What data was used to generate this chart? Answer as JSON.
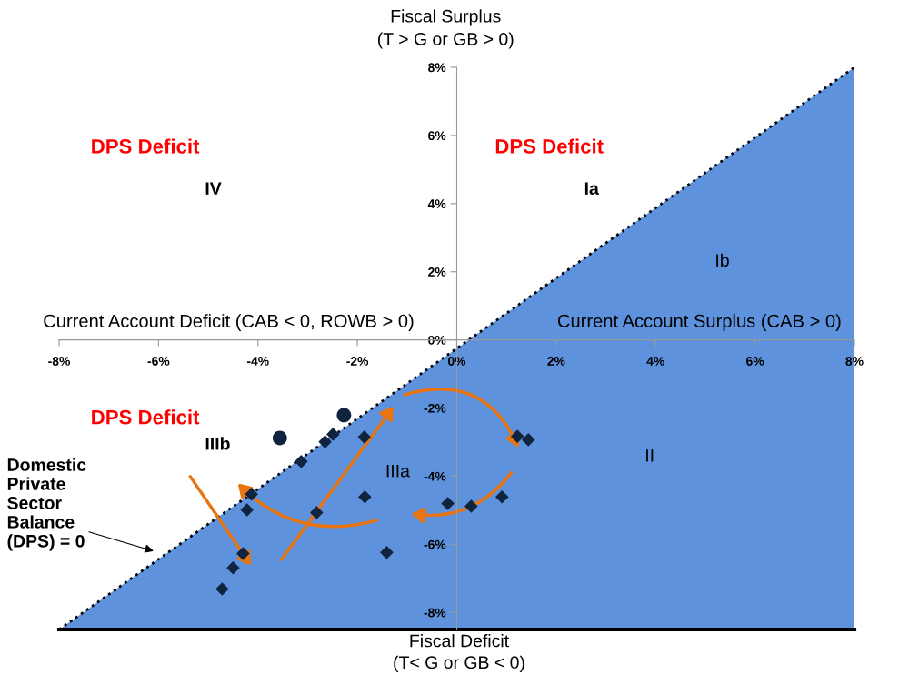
{
  "chart_data": {
    "type": "scatter",
    "ylabel": "Fiscal Surplus\n(T > G or GB > 0)",
    "xlabel": "Fiscal Deficit\n(T< G or GB < 0)",
    "xlim": [
      -8,
      8
    ],
    "ylim": [
      -8.5,
      8
    ],
    "xticks": [
      {
        "value": -8,
        "label": "-8%"
      },
      {
        "value": -6,
        "label": "-6%"
      },
      {
        "value": -4,
        "label": "-4%"
      },
      {
        "value": -2,
        "label": "-2%"
      },
      {
        "value": 0,
        "label": "0%"
      },
      {
        "value": 2,
        "label": "2%"
      },
      {
        "value": 4,
        "label": "4%"
      },
      {
        "value": 6,
        "label": "6%"
      },
      {
        "value": 8,
        "label": "8%"
      }
    ],
    "yticks": [
      {
        "value": -8,
        "label": "-8%"
      },
      {
        "value": -6,
        "label": "-6%"
      },
      {
        "value": -4,
        "label": "-4%"
      },
      {
        "value": -2,
        "label": "-2%"
      },
      {
        "value": 0,
        "label": "0%"
      },
      {
        "value": 2,
        "label": "2%"
      },
      {
        "value": 4,
        "label": "4%"
      },
      {
        "value": 6,
        "label": "6%"
      },
      {
        "value": 8,
        "label": "8%"
      }
    ],
    "grid": false,
    "series": [
      {
        "type": "area",
        "color": "#5e92dc",
        "line_style": "dotted",
        "marker": "none",
        "x": [
          -8,
          8
        ],
        "values": [
          -8.5,
          8
        ]
      },
      {
        "color": "#10243f",
        "marker": "circle",
        "x": [
          -2.27,
          -3.56
        ],
        "values": [
          -2.21,
          -2.88
        ]
      },
      {
        "color": "#10243f",
        "marker": "diamond",
        "x": [
          -2.49,
          -2.65,
          -1.86,
          -3.13,
          -4.13,
          -4.22,
          -1.85,
          -2.82,
          -4.3,
          -4.5,
          -4.72,
          -1.41,
          1.22,
          1.44,
          -0.18,
          0.29,
          0.91
        ],
        "values": [
          -2.77,
          -2.99,
          -2.85,
          -3.57,
          -4.53,
          -4.99,
          -4.61,
          -5.07,
          -6.27,
          -6.69,
          -7.31,
          -6.24,
          -2.83,
          -2.93,
          -4.8,
          -4.88,
          -4.61
        ]
      }
    ],
    "annotations": [
      "Current Account Deficit (CAB < 0, ROWB > 0)",
      "Current Account Surplus (CAB > 0)",
      "DPS Deficit",
      "DPS Deficit",
      "DPS Deficit",
      "IV",
      "Ia",
      "Ib",
      "IIIb",
      "IIIa",
      "II",
      "Domestic\nPrivate\nSector\nBalance\n(DPS) = 0"
    ]
  }
}
